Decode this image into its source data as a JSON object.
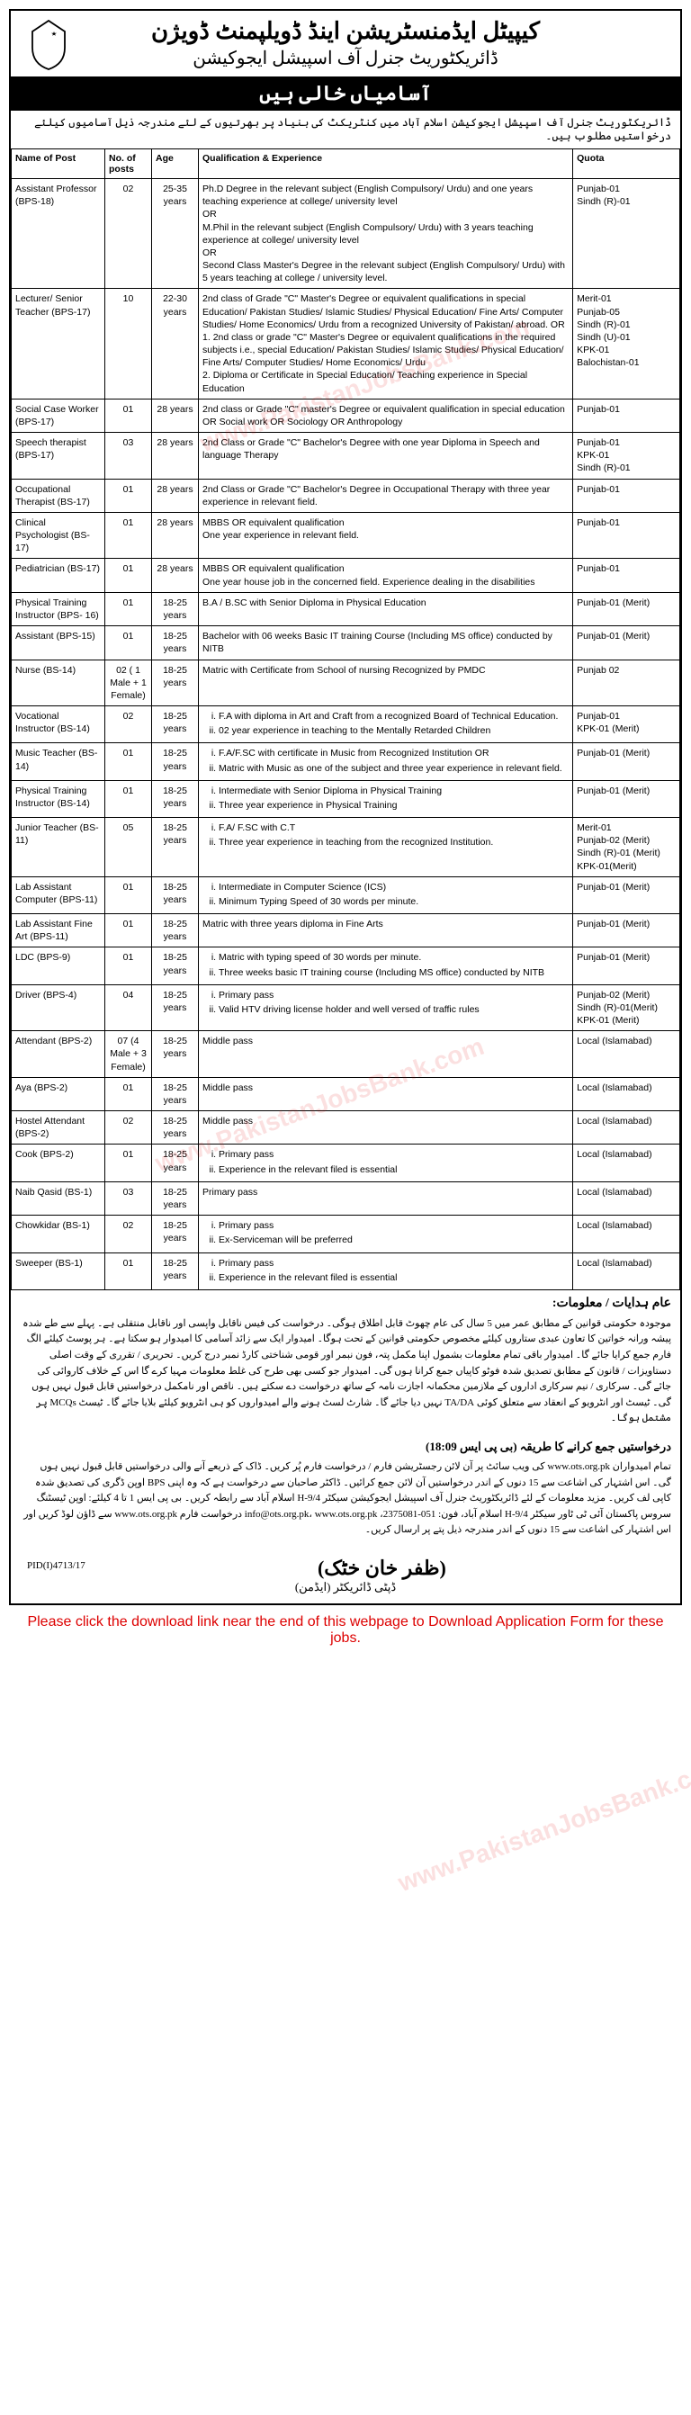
{
  "header": {
    "title1_urdu": "کیپیٹل ایڈمنسٹریشن اینڈ ڈویلپمنٹ ڈویژن",
    "title2_urdu": "ڈائریکٹوریٹ جنرل آف اسپیشل ایجوکیشن",
    "banner_urdu": "آسامیاں خالی ہیں",
    "intro_urdu": "ڈائریکٹوریٹ جنرل آف اسپیشل ایجوکیشن اسلام آباد میں کنٹریکٹ کی بنیاد پر بھرتیوں کے لئے مندرجہ ذیل آسامیوں کیلئے درخواستیں مطلوب ہیں۔"
  },
  "table": {
    "headers": {
      "name": "Name of Post",
      "posts": "No. of posts",
      "age": "Age",
      "qual": "Qualification & Experience",
      "quota": "Quota"
    },
    "cols": {
      "name_width": "14%",
      "posts_width": "7%",
      "age_width": "7%",
      "qual_width": "56%",
      "quota_width": "16%"
    },
    "rows": [
      {
        "name": "Assistant Professor (BPS-18)",
        "posts": "02",
        "age": "25-35 years",
        "qual_text": "Ph.D Degree in the relevant subject (English Compulsory/ Urdu) and one years teaching experience at college/ university level\nOR\nM.Phil in the relevant subject (English Compulsory/ Urdu) with 3 years teaching experience at college/ university level\nOR\nSecond Class Master's Degree in the relevant subject (English Compulsory/ Urdu) with 5 years teaching at college / university level.",
        "quota": "Punjab-01\nSindh (R)-01"
      },
      {
        "name": "Lecturer/ Senior Teacher (BPS-17)",
        "posts": "10",
        "age": "22-30 years",
        "qual_text": "2nd class of Grade \"C\" Master's Degree or equivalent qualifications in special Education/ Pakistan Studies/ Islamic Studies/ Physical Education/ Fine Arts/ Computer Studies/ Home Economics/ Urdu from a recognized University of Pakistan/ abroad. OR\n1. 2nd class or grade \"C\" Master's Degree or equivalent qualifications in the required subjects i.e., special Education/ Pakistan Studies/ Islamic Studies/ Physical Education/ Fine Arts/ Computer Studies/ Home Economics/ Urdu\n2. Diploma or Certificate in Special Education/ Teaching experience in Special Education",
        "quota": "Merit-01\nPunjab-05\nSindh (R)-01\nSindh (U)-01\nKPK-01\nBalochistan-01"
      },
      {
        "name": "Social Case Worker (BPS-17)",
        "posts": "01",
        "age": "28 years",
        "qual_text": "2nd class or Grade \"C\" master's Degree or equivalent qualification in special education OR Social work OR Sociology OR Anthropology",
        "quota": "Punjab-01"
      },
      {
        "name": "Speech therapist (BPS-17)",
        "posts": "03",
        "age": "28 years",
        "qual_text": "2nd Class or Grade \"C\" Bachelor's Degree with one year Diploma in Speech and language Therapy",
        "quota": "Punjab-01\nKPK-01\nSindh (R)-01"
      },
      {
        "name": "Occupational Therapist (BS-17)",
        "posts": "01",
        "age": "28 years",
        "qual_text": "2nd Class or Grade \"C\" Bachelor's Degree in Occupational Therapy with three year experience in relevant field.",
        "quota": "Punjab-01"
      },
      {
        "name": "Clinical Psychologist (BS-17)",
        "posts": "01",
        "age": "28 years",
        "qual_text": "MBBS OR equivalent qualification\nOne year experience in relevant field.",
        "quota": "Punjab-01"
      },
      {
        "name": "Pediatrician (BS-17)",
        "posts": "01",
        "age": "28 years",
        "qual_text": "MBBS OR equivalent qualification\nOne year house job in the concerned field. Experience dealing in the disabilities",
        "quota": "Punjab-01"
      },
      {
        "name": "Physical Training Instructor (BPS- 16)",
        "posts": "01",
        "age": "18-25 years",
        "qual_text": "B.A / B.SC with Senior Diploma in Physical Education",
        "quota": "Punjab-01 (Merit)"
      },
      {
        "name": "Assistant (BPS-15)",
        "posts": "01",
        "age": "18-25 years",
        "qual_text": "Bachelor with 06 weeks Basic IT training Course (Including MS office) conducted by NITB",
        "quota": "Punjab-01 (Merit)"
      },
      {
        "name": "Nurse (BS-14)",
        "posts": "02 ( 1 Male + 1 Female)",
        "age": "18-25 years",
        "qual_text": "Matric with Certificate from School of nursing Recognized by PMDC",
        "quota": "Punjab 02"
      },
      {
        "name": "Vocational Instructor (BS-14)",
        "posts": "02",
        "age": "18-25 years",
        "qual_items": [
          "F.A with diploma in Art and Craft from a recognized Board of Technical Education.",
          "02 year experience in teaching to the Mentally Retarded Children"
        ],
        "quota": "Punjab-01\nKPK-01 (Merit)"
      },
      {
        "name": "Music Teacher (BS-14)",
        "posts": "01",
        "age": "18-25 years",
        "qual_items": [
          "F.A/F.SC with certificate in Music from Recognized Institution OR",
          "Matric with Music as one of the subject and three year experience in relevant field."
        ],
        "quota": "Punjab-01 (Merit)"
      },
      {
        "name": "Physical Training Instructor (BS-14)",
        "posts": "01",
        "age": "18-25 years",
        "qual_items": [
          "Intermediate with Senior Diploma in Physical Training",
          "Three year experience in Physical Training"
        ],
        "quota": "Punjab-01 (Merit)"
      },
      {
        "name": "Junior Teacher (BS-11)",
        "posts": "05",
        "age": "18-25 years",
        "qual_items": [
          "F.A/ F.SC with C.T",
          "Three year experience in teaching from the recognized Institution."
        ],
        "quota": "Merit-01\nPunjab-02 (Merit) Sindh (R)-01 (Merit)\nKPK-01(Merit)"
      },
      {
        "name": "Lab Assistant Computer (BPS-11)",
        "posts": "01",
        "age": "18-25 years",
        "qual_items": [
          "Intermediate in Computer Science (ICS)",
          "Minimum Typing Speed of 30 words per minute."
        ],
        "quota": "Punjab-01 (Merit)"
      },
      {
        "name": "Lab Assistant Fine Art (BPS-11)",
        "posts": "01",
        "age": "18-25 years",
        "qual_text": "Matric with three years diploma in Fine Arts",
        "quota": "Punjab-01 (Merit)"
      },
      {
        "name": "LDC (BPS-9)",
        "posts": "01",
        "age": "18-25 years",
        "qual_items": [
          "Matric with typing speed of 30 words per minute.",
          "Three weeks basic IT training course (Including MS office) conducted by NITB"
        ],
        "quota": "Punjab-01 (Merit)"
      },
      {
        "name": "Driver (BPS-4)",
        "posts": "04",
        "age": "18-25 years",
        "qual_items": [
          "Primary pass",
          "Valid HTV driving license holder and well versed of traffic rules"
        ],
        "quota": "Punjab-02 (Merit) Sindh (R)-01(Merit)\nKPK-01 (Merit)"
      },
      {
        "name": "Attendant (BPS-2)",
        "posts": "07 (4 Male + 3 Female)",
        "age": "18-25 years",
        "qual_text": "Middle pass",
        "quota": "Local (Islamabad)"
      },
      {
        "name": "Aya (BPS-2)",
        "posts": "01",
        "age": "18-25 years",
        "qual_text": "Middle pass",
        "quota": "Local (Islamabad)"
      },
      {
        "name": "Hostel Attendant (BPS-2)",
        "posts": "02",
        "age": "18-25 years",
        "qual_text": "Middle pass",
        "quota": "Local (Islamabad)"
      },
      {
        "name": "Cook (BPS-2)",
        "posts": "01",
        "age": "18-25 years",
        "qual_items": [
          "Primary pass",
          "Experience in the relevant filed is essential"
        ],
        "quota": "Local (Islamabad)"
      },
      {
        "name": "Naib Qasid (BS-1)",
        "posts": "03",
        "age": "18-25 years",
        "qual_text": "Primary pass",
        "quota": "Local (Islamabad)"
      },
      {
        "name": "Chowkidar (BS-1)",
        "posts": "02",
        "age": "18-25 years",
        "qual_items": [
          "Primary pass",
          "Ex-Serviceman will be preferred"
        ],
        "quota": "Local (Islamabad)"
      },
      {
        "name": "Sweeper (BS-1)",
        "posts": "01",
        "age": "18-25 years",
        "qual_items": [
          "Primary pass",
          "Experience in the relevant filed is essential"
        ],
        "quota": "Local (Islamabad)"
      }
    ]
  },
  "instructions": {
    "header_urdu": "عام ہدایات / معلومات:",
    "body_urdu": "موجودہ حکومتی قوانین کے مطابق عمر میں 5 سال کی عام چھوٹ قابل اطلاق ہوگی۔\nدرخواست کی فیس ناقابل واپسی اور ناقابل منتقلی ہے۔\nپہلے سے طے شدہ پیشہ ورانہ خواتین کا تعاون عبدی ستاروں کیلئے مخصوص حکومتی قوانین کے تحت ہوگا۔\nامیدوار ایک سے زائد آسامی کا امیدوار ہو سکتا ہے۔ ہر پوسٹ کیلئے الگ فارم جمع کرایا جائے گا۔\nامیدوار باقی تمام معلومات بشمول اپنا مکمل پتہ، فون نبمر اور قومی شناختی کارڈ نمبر درج کریں۔\nتحریری / تقرری کے وقت اصلی دستاویزات / قانون کے مطابق تصدیق شدہ فوٹو کاپیاں جمع کرانا ہوں گی۔\nامیدوار جو کسی بھی طرح کی غلط معلومات مہیا کرے گا اس کے خلاف کاروائی کی جائے گی۔\nسرکاری / نیم سرکاری اداروں کے ملازمین محکمانہ اجازت نامہ کے ساتھ درخواست دے سکتے ہیں۔\nناقص اور نامکمل درخواستیں قابل قبول نہیں ہوں گی۔\nٹیسٹ اور انٹرویو کے انعقاد سے متعلق کوئی TA/DA نہیں دیا جائے گا۔\nشارٹ لسٹ ہونے والے امیدواروں کو ہی انٹرویو کیلئے بلایا جائے گا۔\nٹیسٹ MCQs پر مشتمل ہوگا۔",
    "subhead_urdu": "درخواستیں جمع کرانے کا طریقہ (بی پی ایس 18:09)",
    "body2_urdu": "تمام امیدواران www.ots.org.pk کی ویب سائٹ پر آن لائن رجسٹریشن فارم / درخواست فارم پُر کریں۔\nڈاک کے ذریعے آنے والی درخواستیں قابل قبول نہیں ہوں گی۔ اس اشتہار کی اشاعت سے 15 دنوں کے اندر درخواستیں آن لائن جمع کرائیں۔\nڈاکٹر صاحبان سے درخواست ہے کہ وہ اپنی BPS اوپن ڈگری کی تصدیق شدہ کاپی لف کریں۔\nمزید معلومات کے لئے ڈائریکٹوریٹ جنرل آف اسپیشل ایجوکیشن سیکٹر H-9/4 اسلام آباد سے رابطہ کریں۔\nبی پی ایس 1 تا 4 کیلئے:\nاوپن ٹیسٹنگ سروس پاکستان آئی ٹی ٹاور سیکٹر H-9/4 اسلام آباد، فون: 051-2375081، info@ots.org.pk، www.ots.org.pk\nدرخواست فارم www.ots.org.pk سے ڈاؤن لوڈ کریں اور اس اشتہار کی اشاعت سے 15 دنوں کے اندر مندرجہ ذیل پتے پر ارسال کریں۔"
  },
  "signature": {
    "pid": "PID(I)4713/17",
    "name_urdu": "(ظفر خان خٹک)",
    "title_urdu": "ڈپٹی ڈائریکٹر (ایڈمن)"
  },
  "footer": {
    "note": "Please click the download link near the end of this webpage to Download Application Form for these jobs."
  },
  "styling": {
    "border_color": "#000000",
    "banner_bg": "#000000",
    "banner_fg": "#ffffff",
    "body_bg": "#ffffff",
    "footer_color": "#cc0000",
    "watermark_color": "rgba(220,0,0,0.12)",
    "table_font_size": 10.5,
    "header_font_size_1": 26,
    "header_font_size_2": 20,
    "banner_font_size": 22
  }
}
